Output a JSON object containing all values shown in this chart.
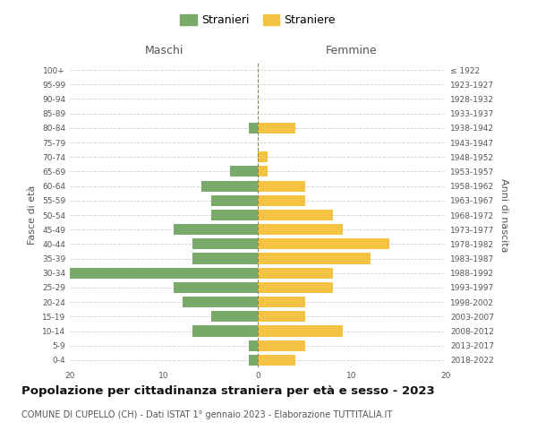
{
  "age_groups": [
    "0-4",
    "5-9",
    "10-14",
    "15-19",
    "20-24",
    "25-29",
    "30-34",
    "35-39",
    "40-44",
    "45-49",
    "50-54",
    "55-59",
    "60-64",
    "65-69",
    "70-74",
    "75-79",
    "80-84",
    "85-89",
    "90-94",
    "95-99",
    "100+"
  ],
  "birth_years": [
    "2018-2022",
    "2013-2017",
    "2008-2012",
    "2003-2007",
    "1998-2002",
    "1993-1997",
    "1988-1992",
    "1983-1987",
    "1978-1982",
    "1973-1977",
    "1968-1972",
    "1963-1967",
    "1958-1962",
    "1953-1957",
    "1948-1952",
    "1943-1947",
    "1938-1942",
    "1933-1937",
    "1928-1932",
    "1923-1927",
    "≤ 1922"
  ],
  "males": [
    1,
    1,
    7,
    5,
    8,
    9,
    21,
    7,
    7,
    9,
    5,
    5,
    6,
    3,
    0,
    0,
    1,
    0,
    0,
    0,
    0
  ],
  "females": [
    4,
    5,
    9,
    5,
    5,
    8,
    8,
    12,
    14,
    9,
    8,
    5,
    5,
    1,
    1,
    0,
    4,
    0,
    0,
    0,
    0
  ],
  "male_color": "#7aaa6a",
  "female_color": "#f5c344",
  "background_color": "#ffffff",
  "grid_color": "#d0d0d0",
  "title": "Popolazione per cittadinanza straniera per età e sesso - 2023",
  "subtitle": "COMUNE DI CUPELLO (CH) - Dati ISTAT 1° gennaio 2023 - Elaborazione TUTTITALIA.IT",
  "ylabel_left": "Fasce di età",
  "ylabel_right": "Anni di nascita",
  "legend_male": "Stranieri",
  "legend_female": "Straniere",
  "xlim": 20,
  "bar_height": 0.75,
  "title_fontsize": 9.5,
  "subtitle_fontsize": 7,
  "tick_fontsize": 6.5,
  "label_fontsize": 8,
  "header_maschi": "Maschi",
  "header_femmine": "Femmine"
}
